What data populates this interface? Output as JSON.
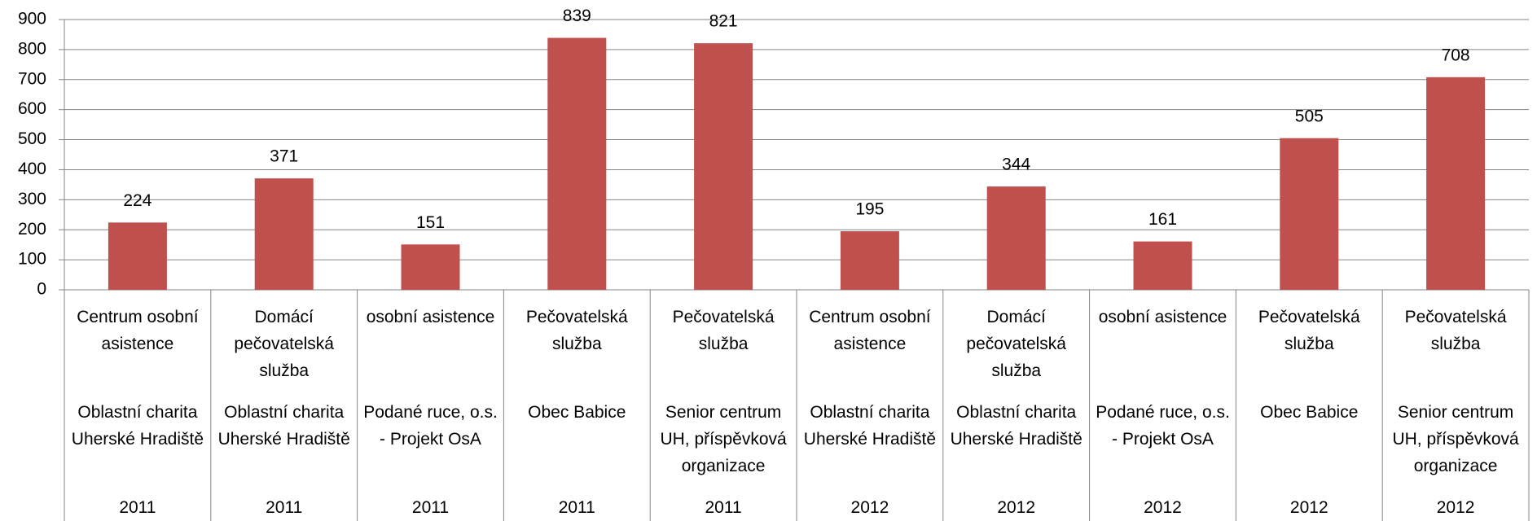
{
  "chart_data": {
    "type": "bar",
    "categories": [
      {
        "service": "Centrum osobní asistence",
        "provider": "Oblastní charita Uherské Hradiště",
        "year": "2011"
      },
      {
        "service": "Domácí pečovatelská služba",
        "provider": "Oblastní charita Uherské Hradiště",
        "year": "2011"
      },
      {
        "service": "osobní asistence",
        "provider": "Podané ruce, o.s. - Projekt OsA",
        "year": "2011"
      },
      {
        "service": "Pečovatelská služba",
        "provider": "Obec Babice",
        "year": "2011"
      },
      {
        "service": "Pečovatelská služba",
        "provider": "Senior centrum UH, příspěvková organizace",
        "year": "2011"
      },
      {
        "service": "Centrum osobní asistence",
        "provider": "Oblastní charita Uherské Hradiště",
        "year": "2012"
      },
      {
        "service": "Domácí pečovatelská služba",
        "provider": "Oblastní charita Uherské Hradiště",
        "year": "2012"
      },
      {
        "service": "osobní asistence",
        "provider": "Podané ruce, o.s. - Projekt OsA",
        "year": "2012"
      },
      {
        "service": "Pečovatelská služba",
        "provider": "Obec Babice",
        "year": "2012"
      },
      {
        "service": "Pečovatelská služba",
        "provider": "Senior centrum UH, příspěvková organizace",
        "year": "2012"
      }
    ],
    "values": [
      224,
      371,
      151,
      839,
      821,
      195,
      344,
      161,
      505,
      708
    ],
    "color": "#c0504d",
    "ylim": [
      0,
      900
    ],
    "yticks": [
      0,
      100,
      200,
      300,
      400,
      500,
      600,
      700,
      800,
      900
    ],
    "grid": true
  }
}
